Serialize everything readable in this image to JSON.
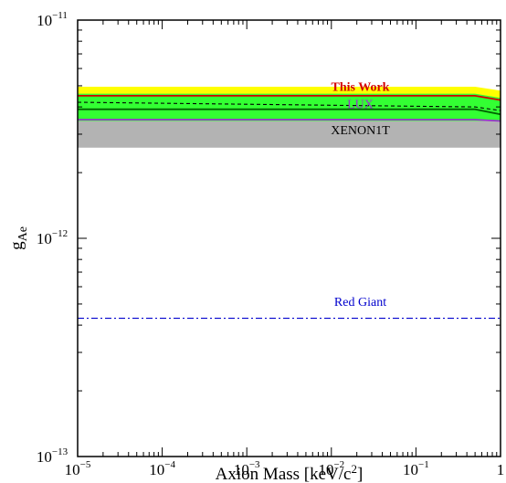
{
  "chart_data": {
    "type": "area",
    "xscale": "log",
    "yscale": "log",
    "xlim": [
      1e-05,
      1
    ],
    "ylim": [
      1e-13,
      1e-11
    ],
    "xlabel": "Axion Mass [keV/c",
    "xlabel_sup": "2",
    "xlabel_tail": "]",
    "ylabel": "g",
    "ylabel_sub": "Ae",
    "x_ticks": [
      {
        "value": 1e-05,
        "base": "10",
        "exp": "−5"
      },
      {
        "value": 0.0001,
        "base": "10",
        "exp": "−4"
      },
      {
        "value": 0.001,
        "base": "10",
        "exp": "−3"
      },
      {
        "value": 0.01,
        "base": "10",
        "exp": "−2"
      },
      {
        "value": 0.1,
        "base": "10",
        "exp": "−1"
      },
      {
        "value": 1,
        "base": "1",
        "exp": ""
      }
    ],
    "y_ticks": [
      {
        "value": 1e-13,
        "base": "10",
        "exp": "−13"
      },
      {
        "value": 1e-12,
        "base": "10",
        "exp": "−12"
      },
      {
        "value": 1e-11,
        "base": "10",
        "exp": "−11"
      }
    ],
    "bands": [
      {
        "name": "yellow-band",
        "color": "#ffff00",
        "x": [
          1e-05,
          0.5,
          1
        ],
        "upper": [
          4.95e-12,
          4.95e-12,
          4.75e-12
        ],
        "lower": [
          3e-12,
          3e-12,
          2.9e-12
        ]
      },
      {
        "name": "green-band",
        "color": "#33ff33",
        "x": [
          1e-05,
          0.5,
          1
        ],
        "upper": [
          4.6e-12,
          4.6e-12,
          4.4e-12
        ],
        "lower": [
          3.35e-12,
          3.35e-12,
          3.2e-12
        ]
      },
      {
        "name": "xenon1t-region",
        "color": "#b3b3b3",
        "x": [
          1e-05,
          1
        ],
        "upper": [
          3.45e-12,
          3.45e-12
        ],
        "lower": [
          2.6e-12,
          2.6e-12
        ]
      }
    ],
    "series": [
      {
        "name": "This Work",
        "color": "#d40000",
        "style": "solid",
        "x": [
          1e-05,
          0.5,
          1
        ],
        "y": [
          4.5e-12,
          4.5e-12,
          4.3e-12
        ]
      },
      {
        "name": "",
        "color": "#000000",
        "style": "dashed",
        "x": [
          1e-05,
          0.03,
          0.5,
          1
        ],
        "y": [
          4.2e-12,
          4.05e-12,
          4e-12,
          3.85e-12
        ]
      },
      {
        "name": "",
        "color": "#006400",
        "style": "solid",
        "x": [
          1e-05,
          0.5,
          1
        ],
        "y": [
          3.9e-12,
          3.9e-12,
          3.7e-12
        ]
      },
      {
        "name": "LUX",
        "color": "#9932cc",
        "style": "solid",
        "x": [
          1e-05,
          0.5,
          1
        ],
        "y": [
          3.5e-12,
          3.5e-12,
          3.45e-12
        ]
      },
      {
        "name": "Red Giant",
        "color": "#0000cd",
        "style": "dashdot",
        "x": [
          1e-05,
          1
        ],
        "y": [
          4.3e-13,
          4.3e-13
        ]
      }
    ],
    "annotations": [
      {
        "key": "this_work",
        "text": "This Work",
        "color": "#d40000",
        "bold": true,
        "x": 0.022,
        "y": 4.75e-12
      },
      {
        "key": "lux",
        "text": "LUX",
        "color": "#9932cc",
        "bold": false,
        "x": 0.022,
        "y": 3.95e-12
      },
      {
        "key": "xenon1t",
        "text": "XENON1T",
        "color": "#000000",
        "bold": false,
        "x": 0.022,
        "y": 3e-12
      },
      {
        "key": "red_giant",
        "text": "Red Giant",
        "color": "#0000cd",
        "bold": false,
        "x": 0.022,
        "y": 4.9e-13
      }
    ]
  }
}
